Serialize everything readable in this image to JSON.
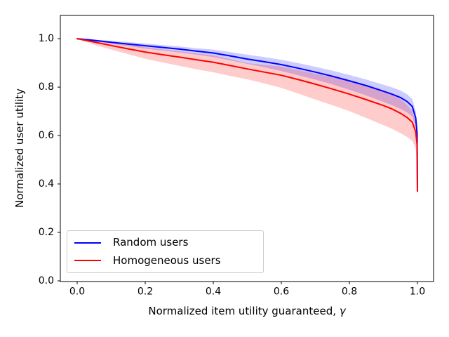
{
  "chart_data": {
    "type": "line",
    "title": "",
    "xlabel": "Normalized item utility guaranteed, γ",
    "xlabel_main": "Normalized item utility guaranteed, ",
    "xlabel_symbol": "γ",
    "ylabel": "Normalized user utility",
    "xlim": [
      -0.0495,
      1.0474
    ],
    "ylim": [
      -0.003,
      1.096
    ],
    "xticks": [
      0.0,
      0.2,
      0.4,
      0.6,
      0.8,
      1.0
    ],
    "xtick_labels": [
      "0.0",
      "0.2",
      "0.4",
      "0.6",
      "0.8",
      "1.0"
    ],
    "yticks": [
      0.0,
      0.2,
      0.4,
      0.6,
      0.8,
      1.0
    ],
    "ytick_labels": [
      "0.0",
      "0.2",
      "0.4",
      "0.6",
      "0.8",
      "1.0"
    ],
    "grid": false,
    "legend_position": "lower-left",
    "axis_color": "#000000",
    "x": [
      0,
      0.05,
      0.1,
      0.15,
      0.2,
      0.25,
      0.3,
      0.35,
      0.4,
      0.45,
      0.5,
      0.55,
      0.6,
      0.65,
      0.7,
      0.75,
      0.8,
      0.85,
      0.9,
      0.925,
      0.95,
      0.97,
      0.985,
      0.995,
      0.999,
      1.0
    ],
    "series": [
      {
        "name": "Random users",
        "color": "#0000ff",
        "band_alpha": 0.2,
        "mean": [
          1.0,
          0.993,
          0.985,
          0.978,
          0.971,
          0.964,
          0.957,
          0.949,
          0.941,
          0.929,
          0.916,
          0.905,
          0.893,
          0.878,
          0.862,
          0.845,
          0.826,
          0.806,
          0.783,
          0.771,
          0.757,
          0.74,
          0.72,
          0.672,
          0.61,
          0.385
        ],
        "upper": [
          1.0,
          0.996,
          0.991,
          0.986,
          0.98,
          0.974,
          0.968,
          0.961,
          0.955,
          0.945,
          0.934,
          0.924,
          0.913,
          0.899,
          0.884,
          0.868,
          0.85,
          0.831,
          0.81,
          0.799,
          0.786,
          0.77,
          0.75,
          0.7,
          0.63,
          0.392
        ],
        "lower": [
          1.0,
          0.989,
          0.979,
          0.969,
          0.959,
          0.951,
          0.943,
          0.934,
          0.924,
          0.91,
          0.896,
          0.882,
          0.866,
          0.849,
          0.831,
          0.811,
          0.789,
          0.765,
          0.739,
          0.725,
          0.71,
          0.695,
          0.678,
          0.636,
          0.565,
          0.345
        ]
      },
      {
        "name": "Homogeneous users",
        "color": "#ff0000",
        "band_alpha": 0.2,
        "mean": [
          1.0,
          0.986,
          0.972,
          0.958,
          0.945,
          0.934,
          0.924,
          0.913,
          0.903,
          0.889,
          0.875,
          0.862,
          0.849,
          0.831,
          0.812,
          0.792,
          0.771,
          0.748,
          0.724,
          0.71,
          0.692,
          0.674,
          0.655,
          0.615,
          0.56,
          0.37
        ],
        "upper": [
          1.0,
          0.994,
          0.986,
          0.975,
          0.965,
          0.956,
          0.948,
          0.939,
          0.931,
          0.915,
          0.899,
          0.892,
          0.885,
          0.87,
          0.855,
          0.841,
          0.826,
          0.806,
          0.783,
          0.769,
          0.75,
          0.726,
          0.7,
          0.655,
          0.59,
          0.38
        ],
        "lower": [
          1.0,
          0.975,
          0.955,
          0.936,
          0.917,
          0.902,
          0.888,
          0.874,
          0.861,
          0.846,
          0.832,
          0.815,
          0.797,
          0.773,
          0.749,
          0.725,
          0.701,
          0.672,
          0.643,
          0.628,
          0.61,
          0.594,
          0.578,
          0.545,
          0.48,
          0.295
        ]
      }
    ]
  }
}
